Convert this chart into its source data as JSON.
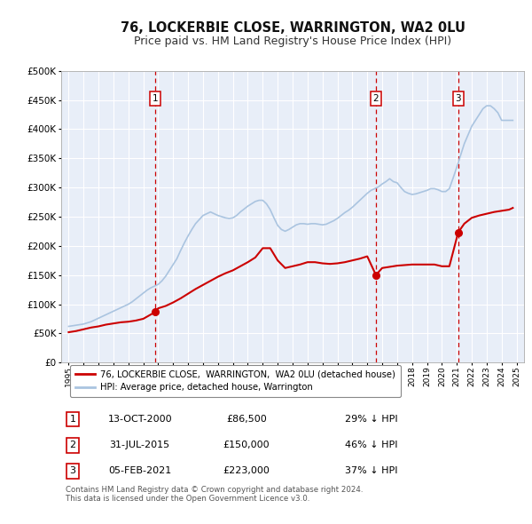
{
  "title": "76, LOCKERBIE CLOSE, WARRINGTON, WA2 0LU",
  "subtitle": "Price paid vs. HM Land Registry's House Price Index (HPI)",
  "title_fontsize": 10.5,
  "subtitle_fontsize": 9,
  "background_color": "#ffffff",
  "plot_bg_color": "#e8eef8",
  "grid_color": "#ffffff",
  "ylim": [
    0,
    500000
  ],
  "yticks": [
    0,
    50000,
    100000,
    150000,
    200000,
    250000,
    300000,
    350000,
    400000,
    450000,
    500000
  ],
  "xlim_start": 1994.5,
  "xlim_end": 2025.5,
  "xticks": [
    1995,
    1996,
    1997,
    1998,
    1999,
    2000,
    2001,
    2002,
    2003,
    2004,
    2005,
    2006,
    2007,
    2008,
    2009,
    2010,
    2011,
    2012,
    2013,
    2014,
    2015,
    2016,
    2017,
    2018,
    2019,
    2020,
    2021,
    2022,
    2023,
    2024,
    2025
  ],
  "sale_color": "#cc0000",
  "hpi_color": "#aac4e0",
  "vline_color": "#cc0000",
  "marker_color": "#cc0000",
  "sale_purchases": [
    {
      "year": 2000.79,
      "value": 86500,
      "label": "1"
    },
    {
      "year": 2015.58,
      "value": 150000,
      "label": "2"
    },
    {
      "year": 2021.09,
      "value": 223000,
      "label": "3"
    }
  ],
  "legend_entries": [
    "76, LOCKERBIE CLOSE,  WARRINGTON,  WA2 0LU (detached house)",
    "HPI: Average price, detached house, Warrington"
  ],
  "table_rows": [
    {
      "num": "1",
      "date": "13-OCT-2000",
      "price": "£86,500",
      "pct": "29% ↓ HPI"
    },
    {
      "num": "2",
      "date": "31-JUL-2015",
      "price": "£150,000",
      "pct": "46% ↓ HPI"
    },
    {
      "num": "3",
      "date": "05-FEB-2021",
      "price": "£223,000",
      "pct": "37% ↓ HPI"
    }
  ],
  "footnote": "Contains HM Land Registry data © Crown copyright and database right 2024.\nThis data is licensed under the Open Government Licence v3.0.",
  "hpi_data_x": [
    1995.0,
    1995.25,
    1995.5,
    1995.75,
    1996.0,
    1996.25,
    1996.5,
    1996.75,
    1997.0,
    1997.25,
    1997.5,
    1997.75,
    1998.0,
    1998.25,
    1998.5,
    1998.75,
    1999.0,
    1999.25,
    1999.5,
    1999.75,
    2000.0,
    2000.25,
    2000.5,
    2000.75,
    2001.0,
    2001.25,
    2001.5,
    2001.75,
    2002.0,
    2002.25,
    2002.5,
    2002.75,
    2003.0,
    2003.25,
    2003.5,
    2003.75,
    2004.0,
    2004.25,
    2004.5,
    2004.75,
    2005.0,
    2005.25,
    2005.5,
    2005.75,
    2006.0,
    2006.25,
    2006.5,
    2006.75,
    2007.0,
    2007.25,
    2007.5,
    2007.75,
    2008.0,
    2008.25,
    2008.5,
    2008.75,
    2009.0,
    2009.25,
    2009.5,
    2009.75,
    2010.0,
    2010.25,
    2010.5,
    2010.75,
    2011.0,
    2011.25,
    2011.5,
    2011.75,
    2012.0,
    2012.25,
    2012.5,
    2012.75,
    2013.0,
    2013.25,
    2013.5,
    2013.75,
    2014.0,
    2014.25,
    2014.5,
    2014.75,
    2015.0,
    2015.25,
    2015.5,
    2015.75,
    2016.0,
    2016.25,
    2016.5,
    2016.75,
    2017.0,
    2017.25,
    2017.5,
    2017.75,
    2018.0,
    2018.25,
    2018.5,
    2018.75,
    2019.0,
    2019.25,
    2019.5,
    2019.75,
    2020.0,
    2020.25,
    2020.5,
    2020.75,
    2021.0,
    2021.25,
    2021.5,
    2021.75,
    2022.0,
    2022.25,
    2022.5,
    2022.75,
    2023.0,
    2023.25,
    2023.5,
    2023.75,
    2024.0,
    2024.25,
    2024.5,
    2024.75
  ],
  "hpi_data_y": [
    62000,
    63000,
    64000,
    65000,
    66000,
    68000,
    70000,
    73000,
    76000,
    79000,
    82000,
    85000,
    88000,
    91000,
    94000,
    97000,
    100000,
    104000,
    109000,
    114000,
    119000,
    124000,
    128000,
    131000,
    134000,
    140000,
    148000,
    158000,
    168000,
    178000,
    192000,
    205000,
    217000,
    228000,
    238000,
    245000,
    252000,
    255000,
    258000,
    255000,
    252000,
    250000,
    248000,
    247000,
    248000,
    252000,
    258000,
    263000,
    268000,
    272000,
    276000,
    278000,
    278000,
    272000,
    262000,
    248000,
    235000,
    228000,
    225000,
    228000,
    232000,
    236000,
    238000,
    238000,
    237000,
    238000,
    238000,
    237000,
    236000,
    237000,
    240000,
    243000,
    247000,
    252000,
    257000,
    261000,
    266000,
    272000,
    278000,
    284000,
    290000,
    295000,
    298000,
    301000,
    306000,
    310000,
    315000,
    310000,
    308000,
    300000,
    293000,
    290000,
    288000,
    289000,
    291000,
    293000,
    295000,
    298000,
    298000,
    296000,
    293000,
    293000,
    298000,
    316000,
    335000,
    355000,
    375000,
    390000,
    405000,
    415000,
    425000,
    435000,
    440000,
    440000,
    435000,
    428000,
    415000,
    415000,
    415000,
    415000
  ],
  "sale_line_x": [
    1995.0,
    1995.5,
    1996.0,
    1996.5,
    1997.0,
    1997.5,
    1998.0,
    1998.5,
    1999.0,
    1999.5,
    2000.0,
    2000.79,
    2001.0,
    2001.5,
    2002.0,
    2002.5,
    2003.0,
    2003.5,
    2004.0,
    2004.5,
    2005.0,
    2005.5,
    2006.0,
    2006.5,
    2007.0,
    2007.5,
    2008.0,
    2008.5,
    2009.0,
    2009.5,
    2010.0,
    2010.5,
    2011.0,
    2011.5,
    2012.0,
    2012.5,
    2013.0,
    2013.5,
    2014.0,
    2014.5,
    2015.0,
    2015.58,
    2016.0,
    2016.5,
    2017.0,
    2017.5,
    2018.0,
    2018.5,
    2019.0,
    2019.5,
    2020.0,
    2020.5,
    2021.09,
    2021.5,
    2022.0,
    2022.5,
    2023.0,
    2023.5,
    2024.0,
    2024.5,
    2024.75
  ],
  "sale_line_y": [
    52000,
    54000,
    57000,
    60000,
    62000,
    65000,
    67000,
    69000,
    70000,
    72000,
    75000,
    86500,
    93000,
    97000,
    103000,
    110000,
    118000,
    126000,
    133000,
    140000,
    147000,
    153000,
    158000,
    165000,
    172000,
    180000,
    196000,
    196000,
    175000,
    162000,
    165000,
    168000,
    172000,
    172000,
    170000,
    169000,
    170000,
    172000,
    175000,
    178000,
    182000,
    150000,
    162000,
    164000,
    166000,
    167000,
    168000,
    168000,
    168000,
    168000,
    165000,
    165000,
    223000,
    238000,
    248000,
    252000,
    255000,
    258000,
    260000,
    262000,
    265000
  ]
}
